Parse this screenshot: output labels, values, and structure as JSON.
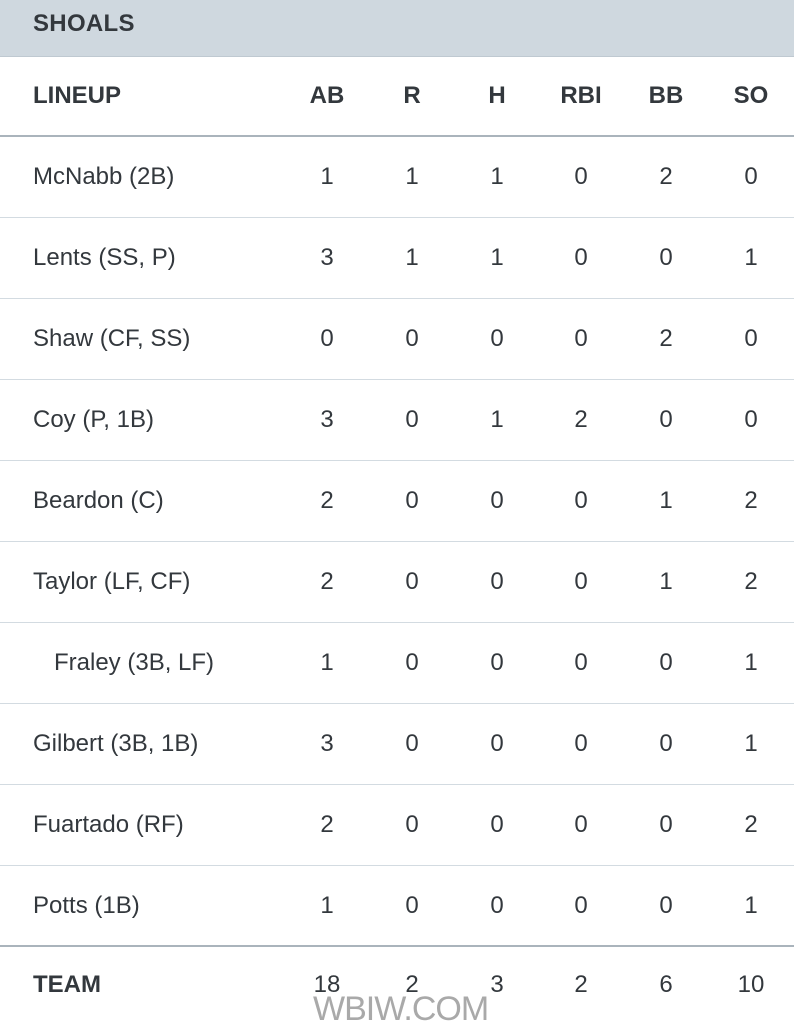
{
  "team_name": "SHOALS",
  "columns": [
    "LINEUP",
    "AB",
    "R",
    "H",
    "RBI",
    "BB",
    "SO"
  ],
  "players": [
    {
      "name": "McNabb (2B)",
      "sub": false,
      "stats": [
        "1",
        "1",
        "1",
        "0",
        "2",
        "0"
      ]
    },
    {
      "name": "Lents (SS, P)",
      "sub": false,
      "stats": [
        "3",
        "1",
        "1",
        "0",
        "0",
        "1"
      ]
    },
    {
      "name": "Shaw (CF, SS)",
      "sub": false,
      "stats": [
        "0",
        "0",
        "0",
        "0",
        "2",
        "0"
      ]
    },
    {
      "name": "Coy (P, 1B)",
      "sub": false,
      "stats": [
        "3",
        "0",
        "1",
        "2",
        "0",
        "0"
      ]
    },
    {
      "name": "Beardon (C)",
      "sub": false,
      "stats": [
        "2",
        "0",
        "0",
        "0",
        "1",
        "2"
      ]
    },
    {
      "name": "Taylor (LF, CF)",
      "sub": false,
      "stats": [
        "2",
        "0",
        "0",
        "0",
        "1",
        "2"
      ]
    },
    {
      "name": "Fraley (3B, LF)",
      "sub": true,
      "stats": [
        "1",
        "0",
        "0",
        "0",
        "0",
        "1"
      ]
    },
    {
      "name": "Gilbert (3B, 1B)",
      "sub": false,
      "stats": [
        "3",
        "0",
        "0",
        "0",
        "0",
        "1"
      ]
    },
    {
      "name": "Fuartado (RF)",
      "sub": false,
      "stats": [
        "2",
        "0",
        "0",
        "0",
        "0",
        "2"
      ]
    },
    {
      "name": "Potts (1B)",
      "sub": false,
      "stats": [
        "1",
        "0",
        "0",
        "0",
        "0",
        "1"
      ]
    }
  ],
  "totals": {
    "label": "TEAM",
    "stats": [
      "18",
      "2",
      "3",
      "2",
      "6",
      "10"
    ]
  },
  "watermark": "WBIW.COM"
}
